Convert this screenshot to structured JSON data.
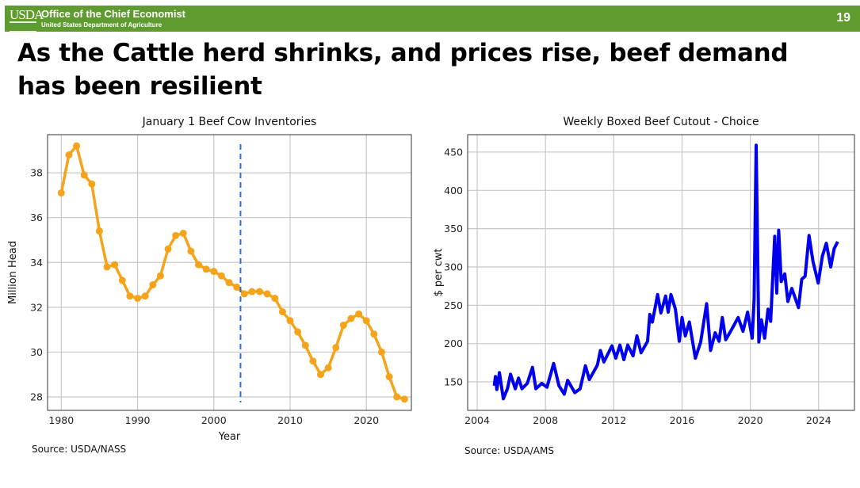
{
  "header": {
    "logo": "USDA",
    "org": "Office of the Chief Economist",
    "dept": "United States Department of Agriculture",
    "page_number": "19",
    "bg_color": "#5f9b2f"
  },
  "slide_title": "As the Cattle herd shrinks, and prices rise, beef demand has been resilient",
  "chart_data": [
    {
      "type": "line",
      "title": "January 1 Beef Cow Inventories",
      "xlabel": "Year",
      "ylabel": "Million Head",
      "xlim": [
        1978.2,
        2025.9
      ],
      "ylim": [
        27.4,
        39.7
      ],
      "xticks": [
        1980,
        1990,
        2000,
        2010,
        2020
      ],
      "yticks": [
        28,
        30,
        32,
        34,
        36,
        38
      ],
      "grid": true,
      "color": "#f5a31a",
      "marker": "circle",
      "vline": {
        "x": 2003.5,
        "color": "#2f6fd0",
        "style": "dashed"
      },
      "x": [
        1980,
        1981,
        1982,
        1983,
        1984,
        1985,
        1986,
        1987,
        1988,
        1989,
        1990,
        1991,
        1992,
        1993,
        1994,
        1995,
        1996,
        1997,
        1998,
        1999,
        2000,
        2001,
        2002,
        2003,
        2004,
        2005,
        2006,
        2007,
        2008,
        2009,
        2010,
        2011,
        2012,
        2013,
        2014,
        2015,
        2016,
        2017,
        2018,
        2019,
        2020,
        2021,
        2022,
        2023,
        2024,
        2025
      ],
      "y": [
        37.1,
        38.8,
        39.2,
        37.9,
        37.5,
        35.4,
        33.8,
        33.9,
        33.2,
        32.5,
        32.4,
        32.5,
        33.0,
        33.4,
        34.6,
        35.2,
        35.3,
        34.5,
        33.9,
        33.7,
        33.6,
        33.4,
        33.1,
        32.9,
        32.6,
        32.7,
        32.7,
        32.6,
        32.4,
        31.8,
        31.4,
        30.9,
        30.3,
        29.6,
        29.0,
        29.3,
        30.2,
        31.2,
        31.5,
        31.7,
        31.4,
        30.8,
        30.0,
        28.9,
        28.0,
        27.9
      ],
      "source": "Source: USDA/NASS"
    },
    {
      "type": "line",
      "title": "Weekly Boxed Beef Cutout - Choice",
      "xlabel": "",
      "ylabel": "$ per cwt",
      "xlim": [
        2003.44,
        2026.1
      ],
      "ylim": [
        112.8,
        472.7
      ],
      "xticks": [
        2004,
        2008,
        2012,
        2016,
        2020,
        2024
      ],
      "yticks": [
        150,
        200,
        250,
        300,
        350,
        400,
        450
      ],
      "grid": true,
      "color": "#0000ee",
      "x": [
        2005.0,
        2005.07,
        2005.15,
        2005.3,
        2005.53,
        2005.77,
        2005.95,
        2006.23,
        2006.42,
        2006.62,
        2006.93,
        2007.24,
        2007.44,
        2007.78,
        2008.09,
        2008.48,
        2008.79,
        2009.1,
        2009.3,
        2009.72,
        2010.03,
        2010.34,
        2010.57,
        2011.04,
        2011.22,
        2011.42,
        2011.89,
        2012.12,
        2012.36,
        2012.59,
        2012.82,
        2013.13,
        2013.36,
        2013.6,
        2013.98,
        2014.11,
        2014.26,
        2014.57,
        2014.76,
        2015.04,
        2015.19,
        2015.35,
        2015.61,
        2015.84,
        2016.0,
        2016.19,
        2016.43,
        2016.78,
        2017.09,
        2017.44,
        2017.67,
        2017.94,
        2018.17,
        2018.36,
        2018.56,
        2018.87,
        2019.29,
        2019.57,
        2019.84,
        2020.11,
        2020.22,
        2020.34,
        2020.5,
        2020.65,
        2020.84,
        2021.04,
        2021.19,
        2021.43,
        2021.55,
        2021.66,
        2021.81,
        2022.02,
        2022.2,
        2022.43,
        2022.82,
        2023.01,
        2023.21,
        2023.44,
        2023.67,
        2023.98,
        2024.22,
        2024.45,
        2024.71,
        2024.91,
        2025.12
      ],
      "y": [
        145,
        157,
        140,
        162,
        128,
        141,
        160,
        141,
        155,
        141,
        148,
        169,
        141,
        148,
        143,
        174,
        145,
        134,
        152,
        136,
        141,
        171,
        153,
        172,
        191,
        176,
        197,
        181,
        198,
        179,
        198,
        184,
        210,
        188,
        203,
        238,
        228,
        264,
        240,
        262,
        241,
        264,
        245,
        203,
        234,
        210,
        228,
        181,
        202,
        252,
        191,
        214,
        203,
        234,
        205,
        217,
        234,
        216,
        241,
        207,
        257,
        459,
        202,
        231,
        207,
        245,
        229,
        340,
        266,
        348,
        281,
        291,
        255,
        272,
        247,
        284,
        288,
        341,
        307,
        279,
        314,
        331,
        300,
        324,
        333
      ],
      "source": "Source: USDA/AMS"
    }
  ]
}
